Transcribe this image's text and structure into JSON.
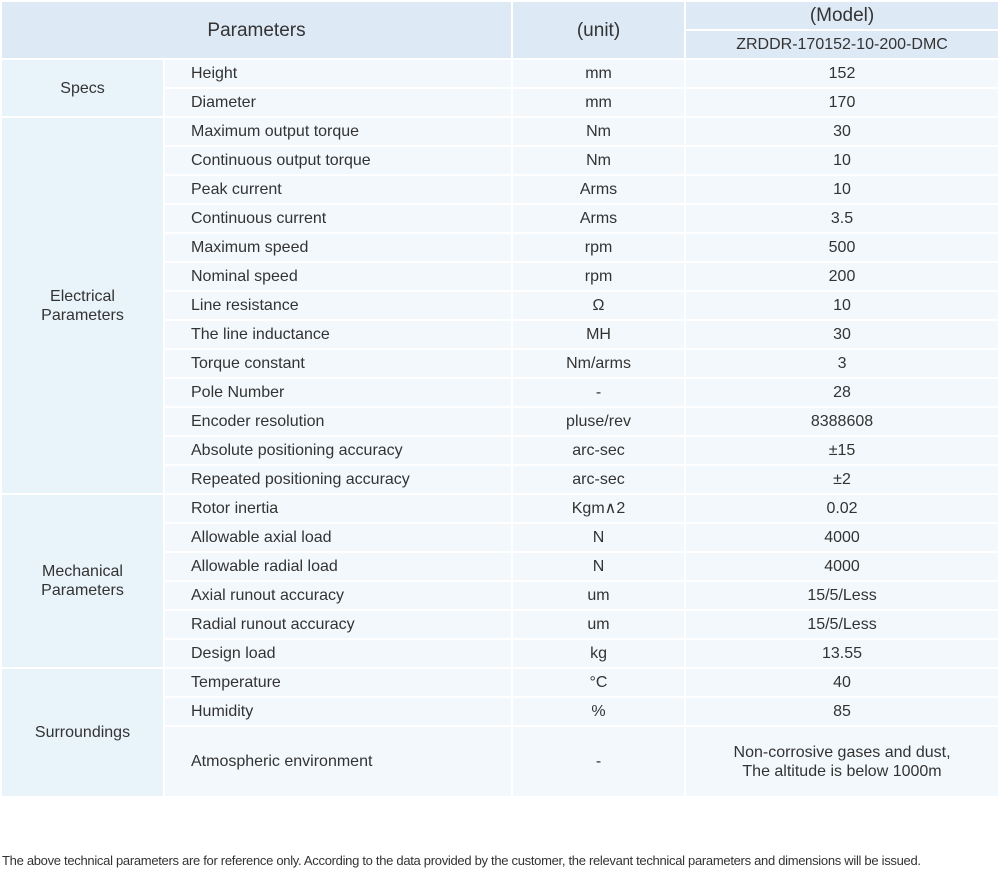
{
  "header": {
    "parameters": "Parameters",
    "unit": "(unit)",
    "model": "(Model)",
    "model_name": "ZRDDR-170152-10-200-DMC"
  },
  "groups": [
    {
      "name": "Specs",
      "rows": [
        [
          "Height",
          "mm",
          "152"
        ],
        [
          "Diameter",
          "mm",
          "170"
        ]
      ]
    },
    {
      "name": "Electrical\nParameters",
      "rows": [
        [
          "Maximum output torque",
          "Nm",
          "30"
        ],
        [
          "Continuous output torque",
          "Nm",
          "10"
        ],
        [
          "Peak current",
          "Arms",
          "10"
        ],
        [
          "Continuous current",
          "Arms",
          "3.5"
        ],
        [
          "Maximum speed",
          "rpm",
          "500"
        ],
        [
          "Nominal speed",
          "rpm",
          "200"
        ],
        [
          "Line resistance",
          "Ω",
          "10"
        ],
        [
          "The line inductance",
          "MH",
          "30"
        ],
        [
          "Torque constant",
          "Nm/arms",
          "3"
        ],
        [
          "Pole Number",
          "-",
          "28"
        ],
        [
          "Encoder resolution",
          "pluse/rev",
          "8388608"
        ],
        [
          "Absolute positioning accuracy",
          "arc-sec",
          "±15"
        ],
        [
          "Repeated positioning accuracy",
          "arc-sec",
          "±2"
        ]
      ]
    },
    {
      "name": "Mechanical\nParameters",
      "rows": [
        [
          "Rotor inertia",
          "Kgm∧2",
          "0.02"
        ],
        [
          "Allowable axial load",
          "N",
          "4000"
        ],
        [
          "Allowable radial load",
          "N",
          "4000"
        ],
        [
          "Axial runout accuracy",
          "um",
          "15/5/Less"
        ],
        [
          "Radial runout accuracy",
          "um",
          "15/5/Less"
        ],
        [
          "Design load",
          "kg",
          "13.55"
        ]
      ]
    },
    {
      "name": "Surroundings",
      "rows": [
        [
          "Temperature",
          "°C",
          "40"
        ],
        [
          "Humidity",
          "%",
          "85"
        ],
        [
          "Atmospheric environment",
          "-",
          "Non-corrosive gases and dust,\nThe altitude is below 1000m"
        ]
      ]
    }
  ],
  "note": "The above technical parameters are for reference only. According to the data provided by the customer, the relevant technical parameters and dimensions will be issued."
}
